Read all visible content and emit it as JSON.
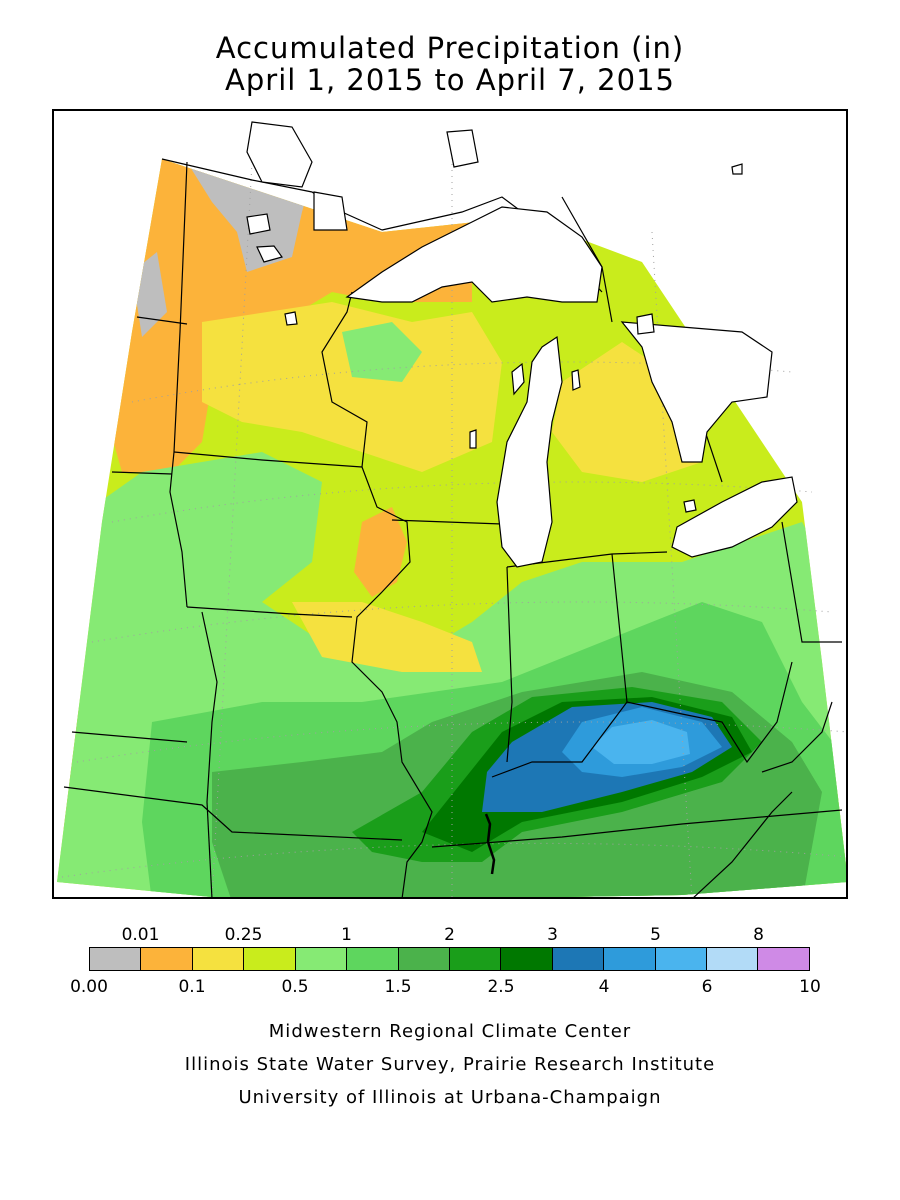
{
  "title": {
    "line1": "Accumulated Precipitation (in)",
    "line2": "April 1, 2015 to April 7, 2015"
  },
  "legend": {
    "unit": "in",
    "top_labels": [
      "0.01",
      "0.25",
      "1",
      "2",
      "3",
      "5",
      "8"
    ],
    "bottom_labels": [
      "0.00",
      "0.1",
      "0.5",
      "1.5",
      "2.5",
      "4",
      "6",
      "10"
    ],
    "bins": [
      {
        "range": [
          0.0,
          0.01
        ],
        "color": "#bebebe"
      },
      {
        "range": [
          0.01,
          0.1
        ],
        "color": "#fcb33a"
      },
      {
        "range": [
          0.1,
          0.25
        ],
        "color": "#f5e13f"
      },
      {
        "range": [
          0.25,
          0.5
        ],
        "color": "#c9ec1c"
      },
      {
        "range": [
          0.5,
          1
        ],
        "color": "#86ea74"
      },
      {
        "range": [
          1,
          1.5
        ],
        "color": "#5ed65e"
      },
      {
        "range": [
          1.5,
          2
        ],
        "color": "#4bb24b"
      },
      {
        "range": [
          2,
          2.5
        ],
        "color": "#1a9e1a"
      },
      {
        "range": [
          2.5,
          3
        ],
        "color": "#007800"
      },
      {
        "range": [
          3,
          4
        ],
        "color": "#1d77b5"
      },
      {
        "range": [
          4,
          5
        ],
        "color": "#2e9bdb"
      },
      {
        "range": [
          5,
          6
        ],
        "color": "#4ab4ee"
      },
      {
        "range": [
          6,
          8
        ],
        "color": "#b2dbf7"
      },
      {
        "range": [
          8,
          10
        ],
        "color": "#cf8ae6"
      }
    ]
  },
  "map": {
    "region": "Midwest",
    "background_color": "#ffffff",
    "boundary_color": "#000000",
    "grid_color": "#a0a0a0",
    "peak_area_color": "#4ab4ee"
  },
  "credits": {
    "line1": "Midwestern Regional Climate Center",
    "line2": "Illinois State Water Survey, Prairie Research Institute",
    "line3": "University of Illinois at Urbana-Champaign"
  }
}
